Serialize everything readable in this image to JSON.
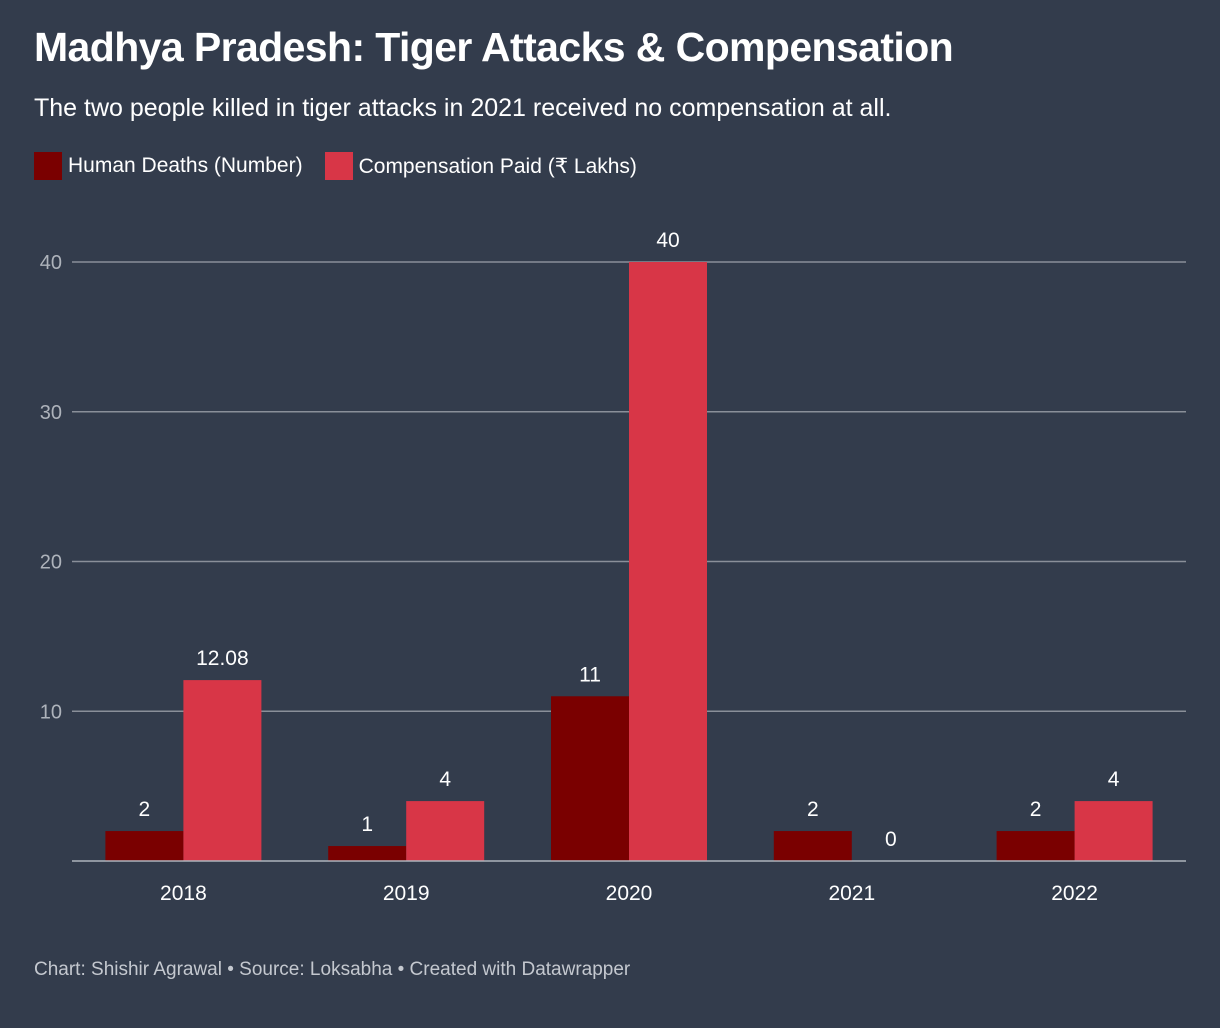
{
  "chart_data": {
    "type": "bar",
    "title": "Madhya Pradesh: Tiger Attacks & Compensation",
    "subtitle": "The two people killed in tiger attacks in 2021 received no compensation at all.",
    "categories": [
      "2018",
      "2019",
      "2020",
      "2021",
      "2022"
    ],
    "series": [
      {
        "name": "Human Deaths (Number)",
        "color": "#7a0000",
        "values": [
          2,
          1,
          11,
          2,
          2
        ],
        "labels": [
          "2",
          "1",
          "11",
          "2",
          "2"
        ]
      },
      {
        "name": "Compensation Paid (₹ Lakhs)",
        "color": "#d83647",
        "values": [
          12.08,
          4,
          40,
          0,
          4
        ],
        "labels": [
          "12.08",
          "4",
          "40",
          "0",
          "4"
        ]
      }
    ],
    "yticks": [
      "10",
      "20",
      "30",
      "40"
    ],
    "ylim": [
      0,
      40
    ],
    "xlabel": "",
    "ylabel": "",
    "grid": true,
    "legend": "top-left"
  },
  "footer": "Chart: Shishir Agrawal • Source: Loksabha • Created with Datawrapper"
}
